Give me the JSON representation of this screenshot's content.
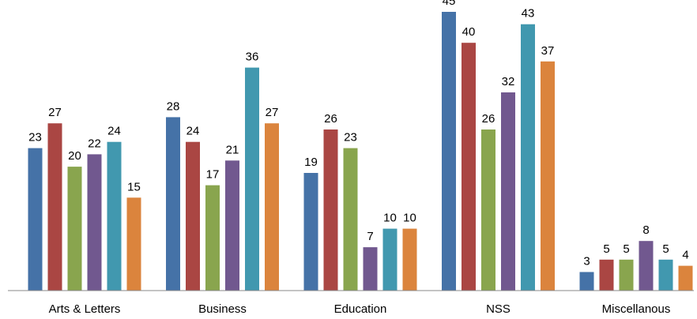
{
  "chart_data": {
    "type": "bar",
    "categories": [
      "Arts & Letters",
      "Business",
      "Education",
      "NSS",
      "Miscellanous"
    ],
    "series": [
      {
        "values": [
          23,
          28,
          19,
          45,
          3
        ],
        "color": "#4572A7"
      },
      {
        "values": [
          27,
          24,
          26,
          40,
          5
        ],
        "color": "#AA4643"
      },
      {
        "values": [
          20,
          17,
          23,
          26,
          5
        ],
        "color": "#89A54E"
      },
      {
        "values": [
          22,
          21,
          7,
          32,
          8
        ],
        "color": "#71588F"
      },
      {
        "values": [
          24,
          36,
          10,
          43,
          5
        ],
        "color": "#4198AF"
      },
      {
        "values": [
          15,
          27,
          10,
          37,
          4
        ],
        "color": "#DB843D"
      }
    ],
    "ylim": [
      0,
      45
    ],
    "grid": false,
    "legend": "none",
    "data_labels": true
  }
}
